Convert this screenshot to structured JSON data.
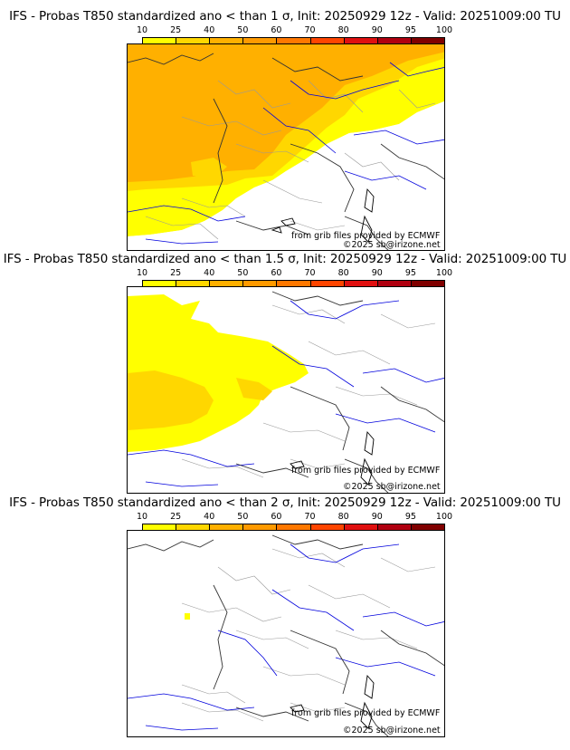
{
  "panels": [
    {
      "title": "IFS - Probas T850  standardized ano < than 1 σ, Init: 20250929 12z - Valid: 20251009:00 TU",
      "credit_source": "from grib files provided by ECMWF",
      "credit_copyright": "©2025 sb@irizone.net"
    },
    {
      "title": "IFS - Probas T850  standardized ano < than 1.5 σ, Init: 20250929 12z - Valid: 20251009:00 TU",
      "credit_source": "from grib files provided by ECMWF",
      "credit_copyright": "©2025 sb@irizone.net"
    },
    {
      "title": "IFS - Probas T850  standardized ano < than 2 σ, Init: 20250929 12z - Valid: 20251009:00 TU",
      "credit_source": "from grib files provided by ECMWF",
      "credit_copyright": "©2025 sb@irizone.net"
    }
  ],
  "colorbar": {
    "labels": [
      "10",
      "25",
      "40",
      "50",
      "60",
      "70",
      "80",
      "90",
      "95",
      "100"
    ],
    "colors": [
      "#ffff00",
      "#ffd700",
      "#ffb000",
      "#ff9a00",
      "#ff7800",
      "#ff4500",
      "#e01010",
      "#b00010",
      "#800000"
    ]
  },
  "fill_colors": {
    "band_10_25": "#ffff00",
    "band_25_40": "#ffd700",
    "band_40_50": "#ffb000",
    "coast": "#000000",
    "rivers": "#0000dd",
    "borders": "#555555",
    "regions": "#aaaaaa"
  }
}
